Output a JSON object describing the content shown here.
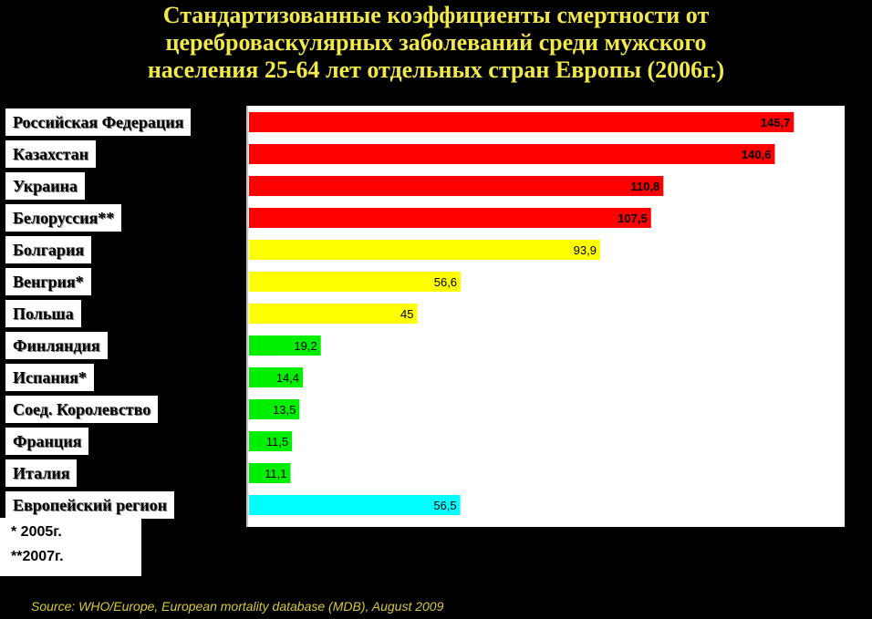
{
  "title": [
    "Стандартизованные коэффициенты смертности от",
    "цереброваскулярных заболеваний среди мужского",
    "населения 25-64 лет отдельных стран Европы (2006г.)"
  ],
  "chart_data": {
    "type": "bar",
    "orientation": "horizontal",
    "categories": [
      "Российская Федерация",
      "Казахстан",
      "Украина",
      "Белоруссия**",
      "Болгария",
      "Венгрия*",
      "Польша",
      "Финляндия",
      "Испания*",
      "Соед. Королевство",
      "Франция",
      "Италия",
      "Европейский регион"
    ],
    "values": [
      145.7,
      140.6,
      110.8,
      107.5,
      93.9,
      56.6,
      45,
      19.2,
      14.4,
      13.5,
      11.5,
      11.1,
      56.5
    ],
    "value_labels": [
      "145,7",
      "140,6",
      "110,8",
      "107,5",
      "93,9",
      "56,6",
      "45",
      "19,2",
      "14,4",
      "13,5",
      "11,5",
      "11,1",
      "56,5"
    ],
    "colors": [
      "#ff0000",
      "#ff0000",
      "#ff0000",
      "#ff0000",
      "#ffff00",
      "#ffff00",
      "#ffff00",
      "#00ee00",
      "#00ee00",
      "#00ee00",
      "#00ee00",
      "#00ee00",
      "#00ffff"
    ],
    "xlim": [
      0,
      160
    ],
    "grid": false
  },
  "notes": [
    "* 2005г.",
    "**2007г."
  ],
  "source": "Source: WHO/Europe, European mortality database (MDB), August  2009"
}
